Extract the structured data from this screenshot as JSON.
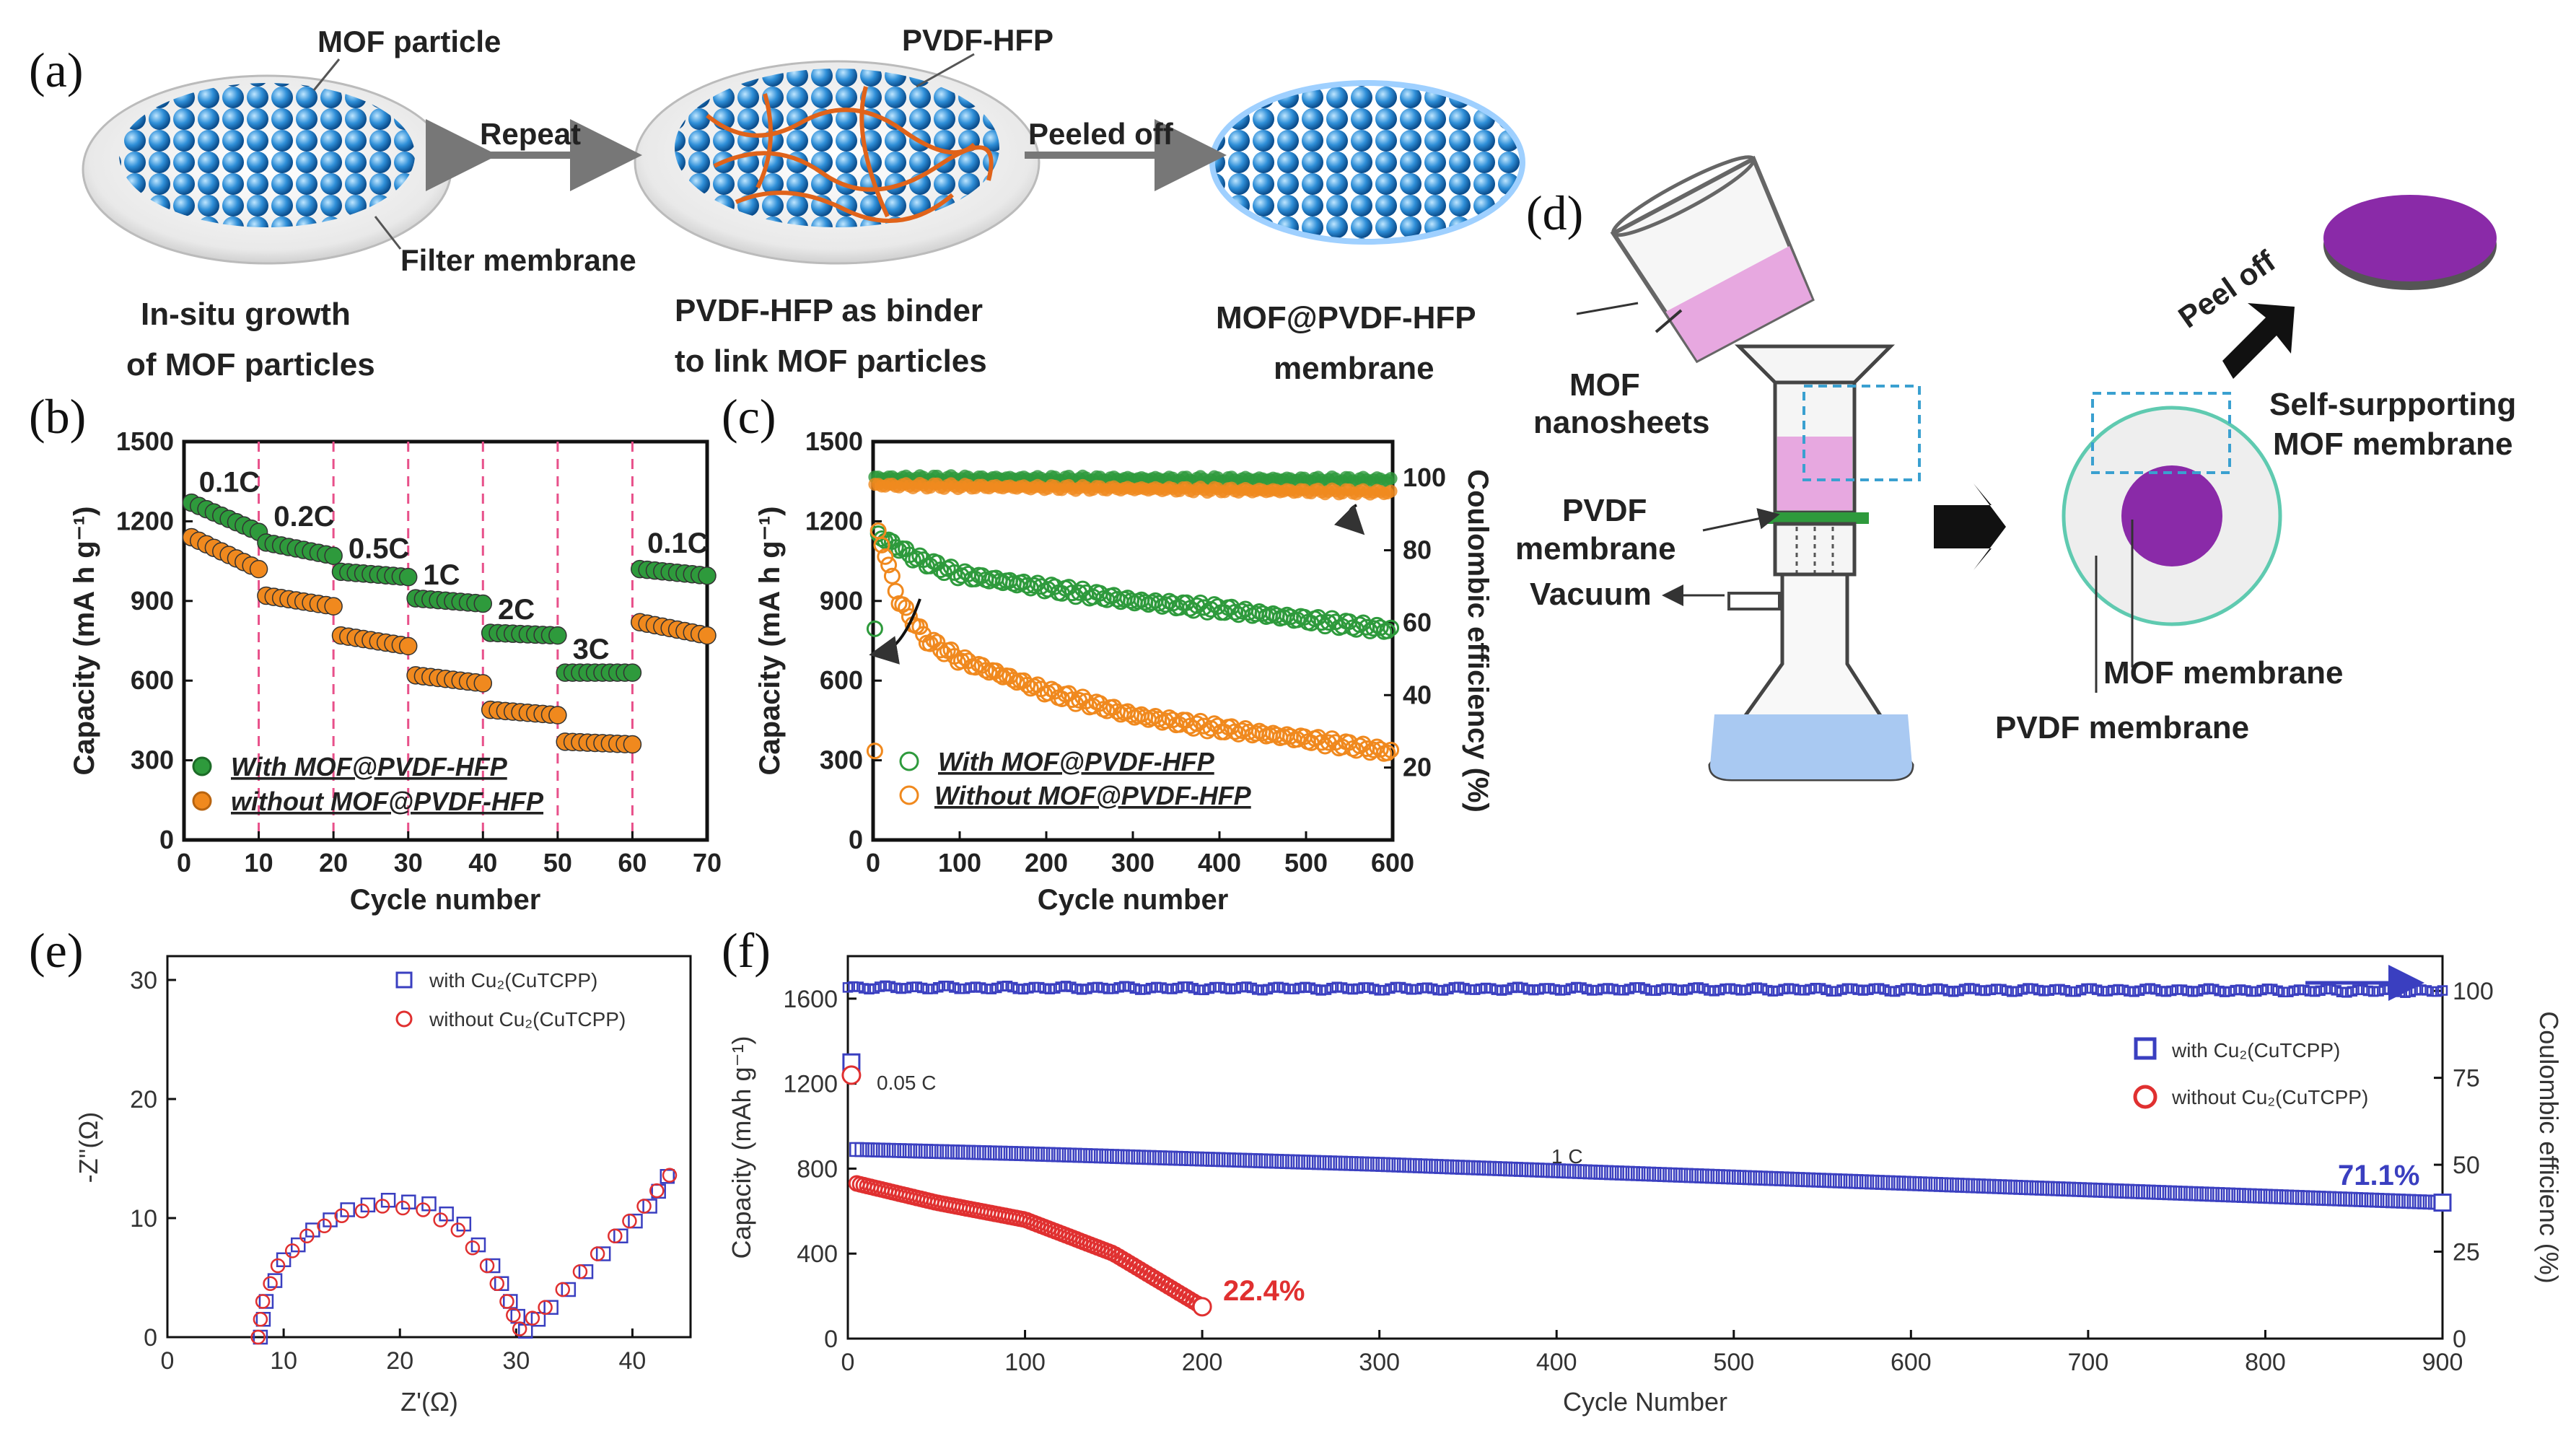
{
  "panel_labels": {
    "a": "(a)",
    "b": "(b)",
    "c": "(c)",
    "d": "(d)",
    "e": "(e)",
    "f": "(f)"
  },
  "schematic_a": {
    "mof_particle": "MOF particle",
    "pvdf_hfp": "PVDF-HFP",
    "repeat": "Repeat",
    "peeled_off": "Peeled off",
    "filter_membrane": "Filter membrane",
    "step1_line1": "In-situ growth",
    "step1_line2": "of MOF particles",
    "step2_line1": "PVDF-HFP as binder",
    "step2_line2": "to link MOF particles",
    "step3_line1": "MOF@PVDF-HFP",
    "step3_line2": "membrane"
  },
  "schematic_d": {
    "mof_line1": "MOF",
    "mof_line2": "nanosheets",
    "pvdf_line1": "PVDF",
    "pvdf_line2": "membrane",
    "vacuum": "Vacuum",
    "peel_off": "Peel off",
    "self_line1": "Self-surpporting",
    "self_line2": "MOF membrane",
    "mof_membrane": "MOF membrane",
    "pvdf_membrane": "PVDF membrane"
  },
  "colors": {
    "green": "#2e9a3c",
    "orange": "#f0891e",
    "pink_dash": "#e8508a",
    "blue": "#3a3fc0",
    "red": "#e03030",
    "membrane_blue": "#2f8fd8",
    "mof_purple": "#8a2aa8",
    "liquid_pink": "#e7a8e0"
  },
  "chart_data": [
    {
      "id": "b",
      "type": "scatter",
      "xlabel": "Cycle number",
      "ylabel": "Capacity (mA h g⁻¹)",
      "xlim": [
        0,
        70
      ],
      "ylim": [
        0,
        1500
      ],
      "xticks": [
        0,
        10,
        20,
        30,
        40,
        50,
        60,
        70
      ],
      "yticks": [
        0,
        300,
        600,
        900,
        1200,
        1500
      ],
      "rate_labels": [
        "0.1C",
        "0.2C",
        "0.5C",
        "1C",
        "2C",
        "3C",
        "0.1C"
      ],
      "rate_boundaries": [
        10,
        20,
        30,
        40,
        50,
        60
      ],
      "series": [
        {
          "name": "With MOF@PVDF-HFP",
          "color": "green",
          "segments": [
            {
              "x0": 1,
              "x1": 10,
              "y0": 1270,
              "y1": 1160
            },
            {
              "x0": 11,
              "x1": 20,
              "y0": 1120,
              "y1": 1070
            },
            {
              "x0": 21,
              "x1": 30,
              "y0": 1010,
              "y1": 990
            },
            {
              "x0": 31,
              "x1": 40,
              "y0": 910,
              "y1": 890
            },
            {
              "x0": 41,
              "x1": 50,
              "y0": 780,
              "y1": 770
            },
            {
              "x0": 51,
              "x1": 60,
              "y0": 630,
              "y1": 630
            },
            {
              "x0": 61,
              "x1": 70,
              "y0": 1020,
              "y1": 995
            }
          ]
        },
        {
          "name": "without MOF@PVDF-HFP",
          "color": "orange",
          "segments": [
            {
              "x0": 1,
              "x1": 10,
              "y0": 1140,
              "y1": 1020
            },
            {
              "x0": 11,
              "x1": 20,
              "y0": 920,
              "y1": 880
            },
            {
              "x0": 21,
              "x1": 30,
              "y0": 770,
              "y1": 730
            },
            {
              "x0": 31,
              "x1": 40,
              "y0": 620,
              "y1": 590
            },
            {
              "x0": 41,
              "x1": 50,
              "y0": 490,
              "y1": 470
            },
            {
              "x0": 51,
              "x1": 60,
              "y0": 370,
              "y1": 360
            },
            {
              "x0": 61,
              "x1": 70,
              "y0": 820,
              "y1": 770
            }
          ]
        }
      ]
    },
    {
      "id": "c",
      "type": "scatter",
      "xlabel": "Cycle number",
      "ylabel": "Capacity (mA h g⁻¹)",
      "y2label": "Coulombic efficiency (%)",
      "xlim": [
        0,
        600
      ],
      "ylim": [
        0,
        1500
      ],
      "y2lim": [
        0,
        110
      ],
      "xticks": [
        0,
        100,
        200,
        300,
        400,
        500,
        600
      ],
      "yticks": [
        0,
        300,
        600,
        900,
        1200,
        1500
      ],
      "y2ticks": [
        20,
        40,
        60,
        80,
        100
      ],
      "series": [
        {
          "name": "With MOF@PVDF-HFP",
          "color": "green",
          "points": [
            [
              5,
              1150
            ],
            [
              50,
              1060
            ],
            [
              100,
              1000
            ],
            [
              200,
              950
            ],
            [
              300,
              900
            ],
            [
              400,
              870
            ],
            [
              500,
              830
            ],
            [
              600,
              790
            ]
          ]
        },
        {
          "name": "Without MOF@PVDF-HFP",
          "color": "orange",
          "points": [
            [
              5,
              1170
            ],
            [
              30,
              900
            ],
            [
              60,
              760
            ],
            [
              100,
              680
            ],
            [
              200,
              560
            ],
            [
              300,
              470
            ],
            [
              400,
              420
            ],
            [
              500,
              380
            ],
            [
              600,
              330
            ]
          ]
        },
        {
          "name": "CE With",
          "color": "green",
          "axis": "y2",
          "points": [
            [
              0,
              100
            ],
            [
              600,
              99.5
            ]
          ]
        },
        {
          "name": "CE Without",
          "color": "orange",
          "axis": "y2",
          "points": [
            [
              0,
              98
            ],
            [
              600,
              96
            ]
          ]
        }
      ]
    },
    {
      "id": "e",
      "type": "scatter",
      "xlabel": "Z'(Ω)",
      "ylabel": "-Z''(Ω)",
      "xlim": [
        0,
        45
      ],
      "ylim": [
        0,
        32
      ],
      "xticks": [
        0,
        10,
        20,
        30,
        40
      ],
      "yticks": [
        0,
        10,
        20,
        30
      ],
      "series": [
        {
          "name": "with Cu₂(CuTCPP)",
          "color": "blue",
          "marker": "square",
          "points": [
            [
              8,
              0
            ],
            [
              8.5,
              3
            ],
            [
              10,
              6.5
            ],
            [
              12.5,
              9
            ],
            [
              15.5,
              10.7
            ],
            [
              19,
              11.5
            ],
            [
              22.5,
              11.2
            ],
            [
              25.5,
              9.5
            ],
            [
              28,
              6
            ],
            [
              29.5,
              3
            ],
            [
              30.8,
              0.5
            ],
            [
              33,
              2.5
            ],
            [
              36,
              5.5
            ],
            [
              39,
              8.5
            ],
            [
              41.5,
              11
            ],
            [
              43,
              13.5
            ]
          ]
        },
        {
          "name": "without Cu₂(CuTCPP)",
          "color": "red",
          "marker": "circle",
          "points": [
            [
              7.8,
              0
            ],
            [
              8.2,
              3
            ],
            [
              9.5,
              6
            ],
            [
              12,
              8.5
            ],
            [
              15,
              10.2
            ],
            [
              18.5,
              11
            ],
            [
              22,
              10.7
            ],
            [
              25,
              9
            ],
            [
              27.5,
              6
            ],
            [
              29.2,
              3
            ],
            [
              30.3,
              0.7
            ],
            [
              32.5,
              2.5
            ],
            [
              35.5,
              5.5
            ],
            [
              38.5,
              8.5
            ],
            [
              41,
              11
            ],
            [
              43.2,
              13.6
            ]
          ]
        }
      ]
    },
    {
      "id": "f",
      "type": "scatter",
      "xlabel": "Cycle Number",
      "ylabel": "Capacity (mAh g⁻¹)",
      "y2label": "Coulombic efficienc (%)",
      "xlim": [
        0,
        900
      ],
      "ylim": [
        0,
        1800
      ],
      "y2lim": [
        0,
        110
      ],
      "xticks": [
        0,
        100,
        200,
        300,
        400,
        500,
        600,
        700,
        800,
        900
      ],
      "yticks": [
        0,
        400,
        800,
        1200,
        1600
      ],
      "y2ticks": [
        0,
        25,
        50,
        75,
        100
      ],
      "annotations": [
        "0.05 C",
        "1 C",
        "71.1%",
        "22.4%"
      ],
      "series": [
        {
          "name": "with Cu₂(CuTCPP)",
          "color": "blue",
          "marker": "square",
          "points": [
            [
              2,
              1300
            ],
            [
              5,
              890
            ],
            [
              100,
              870
            ],
            [
              300,
              820
            ],
            [
              500,
              760
            ],
            [
              700,
              700
            ],
            [
              900,
              640
            ]
          ]
        },
        {
          "name": "without Cu₂(CuTCPP)",
          "color": "red",
          "marker": "circle",
          "points": [
            [
              2,
              1240
            ],
            [
              5,
              730
            ],
            [
              50,
              640
            ],
            [
              100,
              560
            ],
            [
              150,
              400
            ],
            [
              200,
              150
            ]
          ]
        },
        {
          "name": "CE with",
          "color": "blue",
          "axis": "y2",
          "points": [
            [
              0,
              101
            ],
            [
              900,
              100
            ]
          ]
        }
      ]
    }
  ],
  "chart_text": {
    "b_leg1": "With MOF@PVDF-HFP",
    "b_leg2": "without MOF@PVDF-HFP",
    "c_leg1": "With MOF@PVDF-HFP",
    "c_leg2": "Without MOF@PVDF-HFP",
    "e_leg1": "with Cu₂(CuTCPP)",
    "e_leg2": "without Cu₂(CuTCPP)",
    "f_leg1": "with Cu₂(CuTCPP)",
    "f_leg2": "without Cu₂(CuTCPP)",
    "f_ann_005": "0.05 C",
    "f_ann_1c": "1 C",
    "f_ann_711": "71.1%",
    "f_ann_224": "22.4%"
  }
}
